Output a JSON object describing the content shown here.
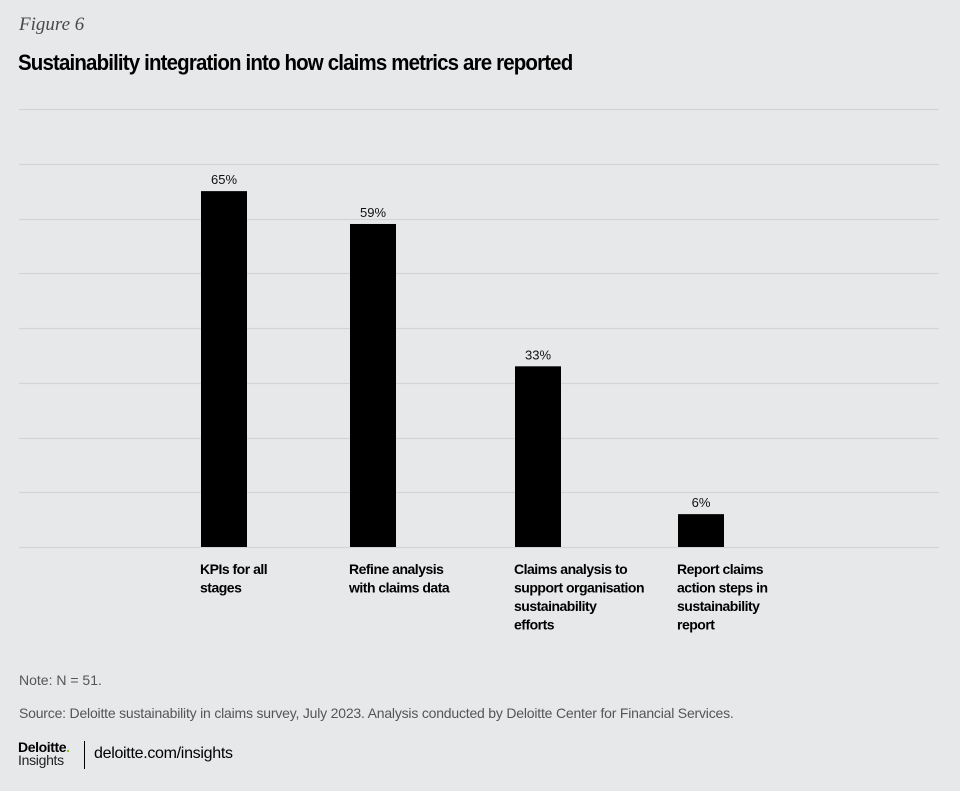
{
  "figure_label": "Figure 6",
  "title": "Sustainability integration into how claims metrics are reported",
  "chart_data": {
    "type": "bar",
    "title": "Sustainability integration into how claims metrics are reported",
    "xlabel": "",
    "ylabel": "",
    "ylim": [
      0,
      80
    ],
    "grid": true,
    "gridline_step": 10,
    "categories": [
      [
        "KPIs for all",
        "stages"
      ],
      [
        "Refine analysis",
        "with claims data"
      ],
      [
        "Claims analysis to",
        "support organisation",
        "sustainability",
        "efforts"
      ],
      [
        "Report claims",
        "action steps in",
        "sustainability",
        "report"
      ]
    ],
    "values": [
      65,
      59,
      33,
      6
    ],
    "data_labels": [
      "65%",
      "59%",
      "33%",
      "6%"
    ],
    "bar_color": "#000000",
    "grid_color": "#d3d4d6"
  },
  "note": "Note: N = 51.",
  "source": "Source: Deloitte sustainability in claims survey, July 2023. Analysis conducted by Deloitte Center for Financial Services.",
  "footer": {
    "logo_line1": "Deloitte",
    "logo_dot": ".",
    "logo_line2": "Insights",
    "url": "deloitte.com/insights",
    "accent_color": "#86bc25"
  }
}
